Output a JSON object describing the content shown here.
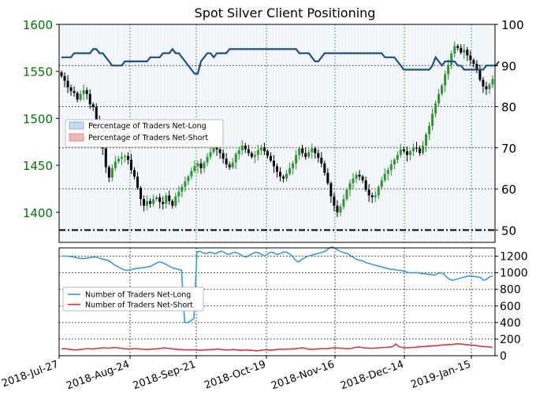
{
  "chart_data": [
    {
      "type": "candlestick+line",
      "title": "Spot Silver Client Positioning",
      "x_labels": [
        "2018-Jul-27",
        "2018-Aug-24",
        "2018-Sep-21",
        "2018-Oct-19",
        "2018-Nov-16",
        "2018-Dec-14",
        "2019-Jan-15"
      ],
      "left_axis": {
        "ticks": [
          1400,
          1450,
          1500,
          1550,
          1600
        ],
        "range": [
          1368,
          1600
        ],
        "color": "#007700"
      },
      "right_axis": {
        "ticks": [
          50,
          60,
          70,
          80,
          90,
          100
        ],
        "range": [
          47,
          100
        ]
      },
      "reference_lines_right": [
        90,
        80,
        70,
        60
      ],
      "threshold_line_right": 50,
      "legend": {
        "placement": "center-left",
        "items": [
          {
            "label": "Percentage of Traders Net-Long",
            "color": "#c6dbef"
          },
          {
            "label": "Percentage of Traders Net-Short",
            "color": "#f4b6b6"
          }
        ]
      },
      "candles_close": [
        1545,
        1540,
        1533,
        1529,
        1527,
        1520,
        1526,
        1530,
        1526,
        1515,
        1512,
        1497,
        1492,
        1468,
        1448,
        1437,
        1447,
        1454,
        1457,
        1459,
        1460,
        1456,
        1445,
        1438,
        1426,
        1414,
        1407,
        1412,
        1409,
        1414,
        1416,
        1411,
        1409,
        1418,
        1412,
        1407,
        1417,
        1422,
        1427,
        1433,
        1438,
        1444,
        1449,
        1452,
        1447,
        1453,
        1459,
        1464,
        1473,
        1467,
        1463,
        1457,
        1451,
        1448,
        1453,
        1462,
        1466,
        1471,
        1467,
        1463,
        1459,
        1461,
        1466,
        1469,
        1465,
        1460,
        1455,
        1449,
        1443,
        1438,
        1436,
        1441,
        1447,
        1452,
        1461,
        1468,
        1463,
        1459,
        1464,
        1468,
        1463,
        1458,
        1452,
        1442,
        1431,
        1417,
        1407,
        1400,
        1406,
        1414,
        1424,
        1431,
        1436,
        1440,
        1438,
        1434,
        1424,
        1418,
        1416,
        1418,
        1427,
        1434,
        1441,
        1445,
        1451,
        1456,
        1461,
        1467,
        1465,
        1461,
        1465,
        1469,
        1468,
        1463,
        1471,
        1483,
        1492,
        1505,
        1516,
        1526,
        1535,
        1547,
        1557,
        1569,
        1577,
        1575,
        1570,
        1573,
        1567,
        1562,
        1558,
        1551,
        1541,
        1534,
        1531,
        1536,
        1542
      ],
      "percent_net_long": [
        92,
        92,
        92,
        92,
        93,
        93,
        93,
        93,
        93,
        93,
        94,
        94,
        93,
        93,
        92,
        91,
        90,
        90,
        90,
        90,
        91,
        91,
        91,
        91,
        91,
        91,
        91,
        91,
        92,
        92,
        92,
        92,
        93,
        93,
        93,
        94,
        93,
        93,
        92,
        91,
        90,
        89,
        88,
        88,
        91,
        92,
        93,
        93,
        92,
        93,
        93,
        93,
        93,
        94,
        94,
        94,
        94,
        94,
        94,
        94,
        94,
        94,
        94,
        94,
        94,
        94,
        94,
        94,
        94,
        94,
        94,
        94,
        94,
        94,
        94,
        93,
        93,
        93,
        93,
        92,
        91,
        91,
        92,
        93,
        93,
        93,
        93,
        93,
        93,
        93,
        93,
        93,
        93,
        93,
        93,
        93,
        93,
        93,
        93,
        93,
        93,
        93,
        92,
        92,
        92,
        92,
        91,
        90,
        89,
        89,
        89,
        89,
        89,
        89,
        89,
        89,
        89,
        90,
        92,
        91,
        90,
        91,
        91,
        91,
        91,
        90,
        90,
        89,
        89,
        89,
        89,
        89,
        89,
        89,
        90,
        90,
        90,
        90,
        91
      ]
    },
    {
      "type": "line",
      "x_labels": [
        "2018-Jul-27",
        "2018-Aug-24",
        "2018-Sep-21",
        "2018-Oct-19",
        "2018-Nov-16",
        "2018-Dec-14",
        "2019-Jan-15"
      ],
      "y_ticks": [
        0,
        200,
        400,
        600,
        800,
        1000,
        1200
      ],
      "ylim": [
        0,
        1300
      ],
      "legend": {
        "placement": "center-left",
        "items": [
          {
            "label": "Number of Traders Net-Long",
            "color": "#3399ee"
          },
          {
            "label": "Number of Traders Net-Short",
            "color": "#dd3333"
          }
        ]
      },
      "series": [
        {
          "name": "Number of Traders Net-Long",
          "color": "#3399ee",
          "values": [
            1200,
            1200,
            1200,
            1195,
            1190,
            1180,
            1175,
            1170,
            1175,
            1180,
            1185,
            1190,
            1180,
            1170,
            1160,
            1150,
            1130,
            1100,
            1080,
            1060,
            1040,
            1030,
            1035,
            1040,
            1050,
            1055,
            1060,
            1065,
            1070,
            1080,
            1100,
            1120,
            1130,
            1120,
            1100,
            1080,
            1060,
            1050,
            1040,
            1030,
            400,
            400,
            420,
            450,
            1250,
            1260,
            1240,
            1230,
            1250,
            1240,
            1230,
            1250,
            1260,
            1240,
            1220,
            1230,
            1250,
            1240,
            1220,
            1200,
            1190,
            1210,
            1230,
            1250,
            1240,
            1220,
            1200,
            1230,
            1250,
            1240,
            1220,
            1230,
            1250,
            1250,
            1230,
            1200,
            1150,
            1130,
            1160,
            1180,
            1200,
            1210,
            1220,
            1230,
            1240,
            1250,
            1270,
            1300,
            1310,
            1290,
            1270,
            1250,
            1240,
            1230,
            1200,
            1180,
            1160,
            1150,
            1140,
            1120,
            1110,
            1100,
            1090,
            1080,
            1070,
            1060,
            1050,
            1040,
            1040,
            1030,
            1030,
            1020,
            1010,
            1000,
            1000,
            1000,
            1000,
            990,
            990,
            980,
            980,
            970,
            990,
            1000,
            990,
            950,
            920,
            910,
            920,
            930,
            940,
            950,
            960,
            960,
            955,
            950,
            945,
            910,
            920,
            950,
            960
          ]
        },
        {
          "name": "Number of Traders Net-Short",
          "color": "#dd3333",
          "values": [
            80,
            85,
            80,
            75,
            70,
            70,
            75,
            80,
            85,
            85,
            80,
            85,
            90,
            95,
            95,
            90,
            95,
            100,
            95,
            90,
            85,
            80,
            80,
            85,
            85,
            80,
            80,
            75,
            75,
            80,
            80,
            85,
            90,
            95,
            90,
            85,
            80,
            75,
            75,
            70,
            70,
            70,
            70,
            70,
            65,
            65,
            70,
            70,
            75,
            75,
            80,
            75,
            70,
            70,
            70,
            75,
            70,
            65,
            65,
            70,
            65,
            65,
            60,
            60,
            65,
            70,
            70,
            65,
            70,
            75,
            80,
            75,
            80,
            80,
            80,
            85,
            90,
            95,
            90,
            80,
            75,
            80,
            80,
            85,
            85,
            85,
            90,
            95,
            95,
            90,
            90,
            85,
            85,
            90,
            100,
            105,
            100,
            95,
            90,
            90,
            90,
            95,
            95,
            100,
            100,
            105,
            110,
            140,
            110,
            100,
            95,
            95,
            100,
            100,
            105,
            110,
            110,
            115,
            115,
            120,
            120,
            125,
            130,
            130,
            135,
            135,
            140,
            145,
            140,
            135,
            130,
            130,
            125,
            120,
            115,
            110,
            110,
            105,
            100
          ]
        }
      ]
    }
  ]
}
